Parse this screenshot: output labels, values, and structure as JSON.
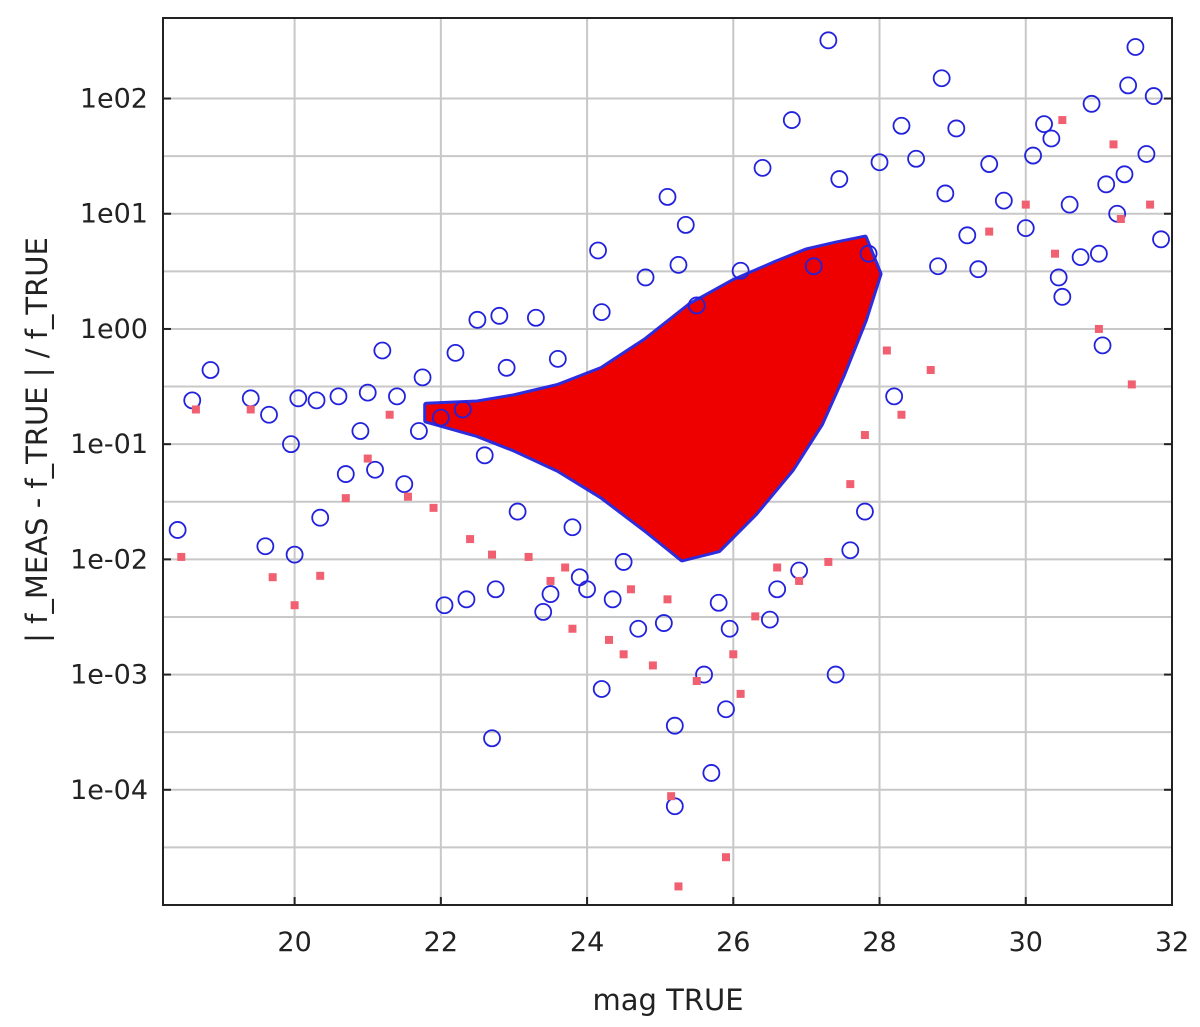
{
  "chart_data": {
    "type": "scatter",
    "title": "",
    "xlabel": "mag TRUE",
    "ylabel": "| f_MEAS - f_TRUE | / f_TRUE",
    "xlim": [
      18.2,
      32.0
    ],
    "ylim": [
      1e-05,
      500
    ],
    "yscale": "log",
    "grid": true,
    "legend": "none",
    "x_ticks": [
      {
        "value": 20,
        "label": "20"
      },
      {
        "value": 22,
        "label": "22"
      },
      {
        "value": 24,
        "label": "24"
      },
      {
        "value": 26,
        "label": "26"
      },
      {
        "value": 28,
        "label": "28"
      },
      {
        "value": 30,
        "label": "30"
      },
      {
        "value": 32,
        "label": "32"
      }
    ],
    "y_ticks": [
      {
        "value": 100,
        "label": "1e02"
      },
      {
        "value": 10,
        "label": "1e01"
      },
      {
        "value": 1,
        "label": "1e00"
      },
      {
        "value": 0.1,
        "label": "1e-01"
      },
      {
        "value": 0.01,
        "label": "1e-02"
      },
      {
        "value": 0.001,
        "label": "1e-03"
      },
      {
        "value": 0.0001,
        "label": "1e-04"
      }
    ],
    "series": [
      {
        "marker": "open-circle",
        "color": "#2222dd",
        "points": [
          [
            18.4,
            0.018
          ],
          [
            18.6,
            0.24
          ],
          [
            18.85,
            0.44
          ],
          [
            19.4,
            0.25
          ],
          [
            19.65,
            0.18
          ],
          [
            19.6,
            0.013
          ],
          [
            19.95,
            0.1
          ],
          [
            20.0,
            0.011
          ],
          [
            20.05,
            0.25
          ],
          [
            20.3,
            0.24
          ],
          [
            20.35,
            0.023
          ],
          [
            20.6,
            0.26
          ],
          [
            20.7,
            0.055
          ],
          [
            20.9,
            0.13
          ],
          [
            21.0,
            0.28
          ],
          [
            21.1,
            0.06
          ],
          [
            21.2,
            0.65
          ],
          [
            21.4,
            0.26
          ],
          [
            21.5,
            0.045
          ],
          [
            21.7,
            0.13
          ],
          [
            21.75,
            0.38
          ],
          [
            22.0,
            0.17
          ],
          [
            22.05,
            0.004
          ],
          [
            22.2,
            0.62
          ],
          [
            22.3,
            0.2
          ],
          [
            22.35,
            0.0045
          ],
          [
            22.5,
            1.2
          ],
          [
            22.6,
            0.08
          ],
          [
            22.7,
            0.00028
          ],
          [
            22.75,
            0.0055
          ],
          [
            22.8,
            1.3
          ],
          [
            22.9,
            0.46
          ],
          [
            23.05,
            0.026
          ],
          [
            23.3,
            1.25
          ],
          [
            23.4,
            0.0035
          ],
          [
            23.5,
            0.005
          ],
          [
            23.6,
            0.55
          ],
          [
            23.8,
            0.019
          ],
          [
            23.9,
            0.007
          ],
          [
            24.0,
            0.0055
          ],
          [
            24.15,
            4.8
          ],
          [
            24.2,
            0.00075
          ],
          [
            24.2,
            1.4
          ],
          [
            24.35,
            0.0045
          ],
          [
            24.5,
            0.0095
          ],
          [
            24.7,
            0.0025
          ],
          [
            24.8,
            2.8
          ],
          [
            25.05,
            0.0028
          ],
          [
            25.1,
            14.0
          ],
          [
            25.2,
            0.00036
          ],
          [
            25.2,
            7.2e-05
          ],
          [
            25.25,
            3.6
          ],
          [
            25.35,
            8.0
          ],
          [
            25.5,
            1.6
          ],
          [
            25.6,
            0.001
          ],
          [
            25.7,
            0.00014
          ],
          [
            25.8,
            0.0042
          ],
          [
            25.9,
            0.0005
          ],
          [
            25.95,
            0.0025
          ],
          [
            26.1,
            3.2
          ],
          [
            26.4,
            25.0
          ],
          [
            26.5,
            0.003
          ],
          [
            26.6,
            0.0055
          ],
          [
            26.8,
            65.0
          ],
          [
            26.9,
            0.008
          ],
          [
            27.1,
            3.5
          ],
          [
            27.3,
            320.0
          ],
          [
            27.4,
            0.001
          ],
          [
            27.45,
            20.0
          ],
          [
            27.6,
            0.012
          ],
          [
            27.8,
            0.026
          ],
          [
            27.85,
            4.5
          ],
          [
            28.0,
            28.0
          ],
          [
            28.2,
            0.26
          ],
          [
            28.3,
            58.0
          ],
          [
            28.5,
            30.0
          ],
          [
            28.8,
            3.5
          ],
          [
            28.85,
            150.0
          ],
          [
            28.9,
            15.0
          ],
          [
            29.05,
            55.0
          ],
          [
            29.2,
            6.5
          ],
          [
            29.35,
            3.3
          ],
          [
            29.5,
            27.0
          ],
          [
            29.7,
            13.0
          ],
          [
            30.0,
            7.5
          ],
          [
            30.1,
            32.0
          ],
          [
            30.25,
            60.0
          ],
          [
            30.35,
            45.0
          ],
          [
            30.45,
            2.8
          ],
          [
            30.5,
            1.9
          ],
          [
            30.6,
            12.0
          ],
          [
            30.75,
            4.2
          ],
          [
            30.9,
            90.0
          ],
          [
            31.0,
            4.5
          ],
          [
            31.05,
            0.72
          ],
          [
            31.1,
            18.0
          ],
          [
            31.25,
            10.0
          ],
          [
            31.35,
            22.0
          ],
          [
            31.4,
            130.0
          ],
          [
            31.5,
            280.0
          ],
          [
            31.65,
            33.0
          ],
          [
            31.75,
            105.0
          ],
          [
            31.85,
            6.0
          ]
        ]
      },
      {
        "marker": "filled-square",
        "color": "#f06070",
        "points": [
          [
            18.45,
            0.0105
          ],
          [
            18.65,
            0.2
          ],
          [
            19.4,
            0.2
          ],
          [
            19.7,
            0.007
          ],
          [
            20.0,
            0.004
          ],
          [
            20.35,
            0.0072
          ],
          [
            20.7,
            0.034
          ],
          [
            21.0,
            0.075
          ],
          [
            21.3,
            0.18
          ],
          [
            21.55,
            0.035
          ],
          [
            21.9,
            0.028
          ],
          [
            22.4,
            0.015
          ],
          [
            22.7,
            0.011
          ],
          [
            23.2,
            0.0105
          ],
          [
            23.5,
            0.0065
          ],
          [
            23.7,
            0.0085
          ],
          [
            23.8,
            0.0025
          ],
          [
            24.3,
            0.002
          ],
          [
            24.5,
            0.0015
          ],
          [
            24.6,
            0.0055
          ],
          [
            24.9,
            0.0012
          ],
          [
            25.1,
            0.0045
          ],
          [
            25.15,
            8.8e-05
          ],
          [
            25.25,
            1.45e-05
          ],
          [
            25.5,
            0.00088
          ],
          [
            25.9,
            2.6e-05
          ],
          [
            26.0,
            0.0015
          ],
          [
            26.1,
            0.00068
          ],
          [
            26.3,
            0.0032
          ],
          [
            26.6,
            0.0085
          ],
          [
            26.9,
            0.0065
          ],
          [
            27.3,
            0.0095
          ],
          [
            27.6,
            0.045
          ],
          [
            27.8,
            0.12
          ],
          [
            28.1,
            0.65
          ],
          [
            28.3,
            0.18
          ],
          [
            28.7,
            0.44
          ],
          [
            29.5,
            7.0
          ],
          [
            30.0,
            12.0
          ],
          [
            30.4,
            4.5
          ],
          [
            30.5,
            65.0
          ],
          [
            31.0,
            1.0
          ],
          [
            31.2,
            40.0
          ],
          [
            31.3,
            9.0
          ],
          [
            31.45,
            0.33
          ],
          [
            31.7,
            12.0
          ]
        ]
      }
    ],
    "dense_cloud": {
      "color": "#ee0000",
      "outline_color": "#2222dd",
      "description_points_bottom_left_ridge": [
        [
          21.8,
          0.22
        ],
        [
          22.5,
          0.23
        ],
        [
          23.0,
          0.26
        ],
        [
          23.6,
          0.32
        ],
        [
          24.2,
          0.45
        ],
        [
          24.8,
          0.8
        ],
        [
          25.4,
          1.6
        ],
        [
          26.0,
          2.6
        ],
        [
          26.6,
          3.8
        ],
        [
          27.0,
          4.8
        ],
        [
          27.4,
          5.5
        ],
        [
          27.8,
          6.2
        ]
      ],
      "envelope_lower": [
        [
          21.8,
          0.16
        ],
        [
          22.5,
          0.12
        ],
        [
          23.0,
          0.09
        ],
        [
          23.6,
          0.06
        ],
        [
          24.2,
          0.035
        ],
        [
          24.8,
          0.018
        ],
        [
          25.3,
          0.01
        ],
        [
          25.8,
          0.012
        ],
        [
          26.3,
          0.025
        ],
        [
          26.8,
          0.06
        ],
        [
          27.2,
          0.15
        ],
        [
          27.5,
          0.4
        ],
        [
          27.8,
          1.2
        ],
        [
          28.0,
          3.0
        ]
      ]
    }
  }
}
